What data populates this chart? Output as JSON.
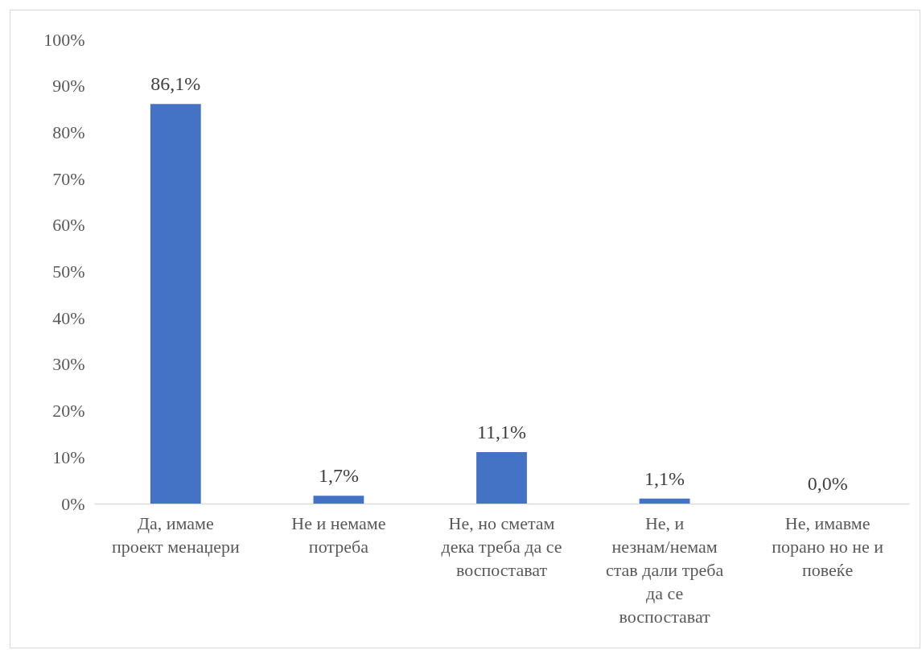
{
  "chart_data": {
    "type": "bar",
    "categories": [
      "Да, имаме проект менаџери",
      "Не и немаме потреба",
      "Не, но сметам дека треба да се воспостават",
      "Не, и незнам/немам став дали треба да се воспостават",
      "Не, имавме порано но не и повеќе"
    ],
    "values": [
      86.1,
      1.7,
      11.1,
      1.1,
      0.0
    ],
    "value_labels": [
      "86,1%",
      "1,7%",
      "11,1%",
      "1,1%",
      "0,0%"
    ],
    "color": "#4472c4",
    "ylim": [
      0,
      100
    ],
    "yticks": [
      {
        "value": 0,
        "label": "0%"
      },
      {
        "value": 10,
        "label": "10%"
      },
      {
        "value": 20,
        "label": "20%"
      },
      {
        "value": 30,
        "label": "30%"
      },
      {
        "value": 40,
        "label": "40%"
      },
      {
        "value": 50,
        "label": "50%"
      },
      {
        "value": 60,
        "label": "60%"
      },
      {
        "value": 70,
        "label": "70%"
      },
      {
        "value": 80,
        "label": "80%"
      },
      {
        "value": 90,
        "label": "90%"
      },
      {
        "value": 100,
        "label": "100%"
      }
    ],
    "grid": false
  }
}
